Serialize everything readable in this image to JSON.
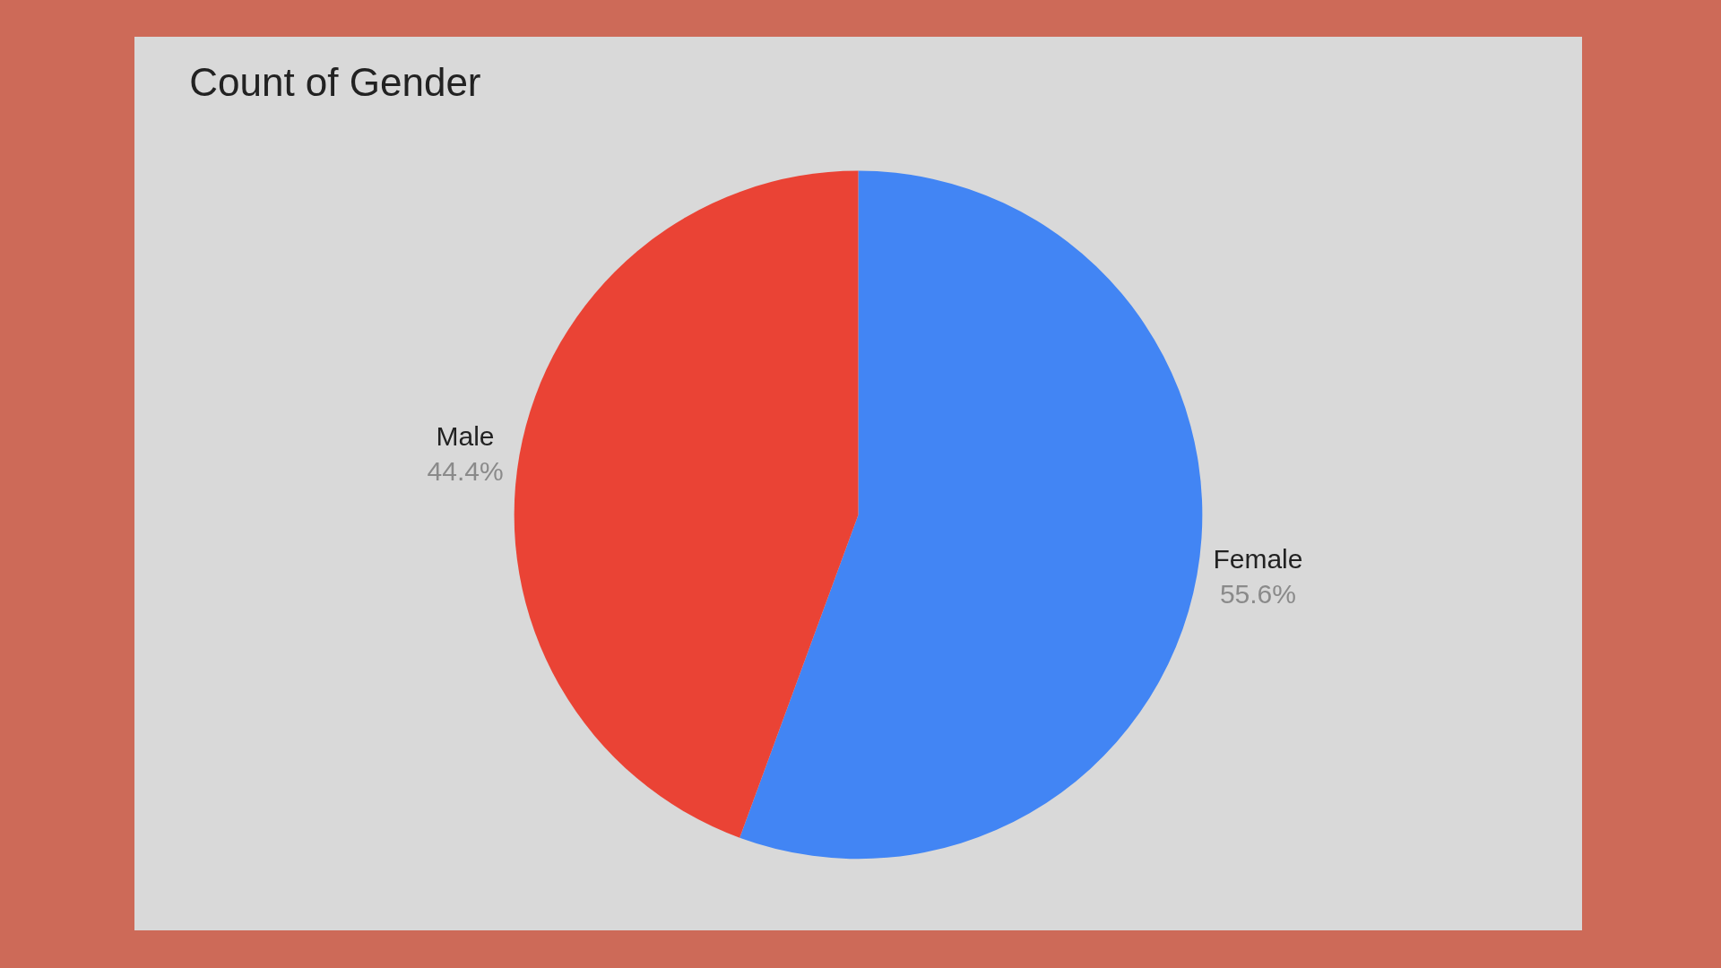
{
  "chart_data": {
    "type": "pie",
    "title": "Count of Gender",
    "categories": [
      "Female",
      "Male"
    ],
    "values": [
      55.6,
      44.4
    ],
    "value_labels": [
      "55.6%",
      "44.4%"
    ],
    "colors": [
      "#4285f4",
      "#ea4335"
    ],
    "legend": false
  }
}
